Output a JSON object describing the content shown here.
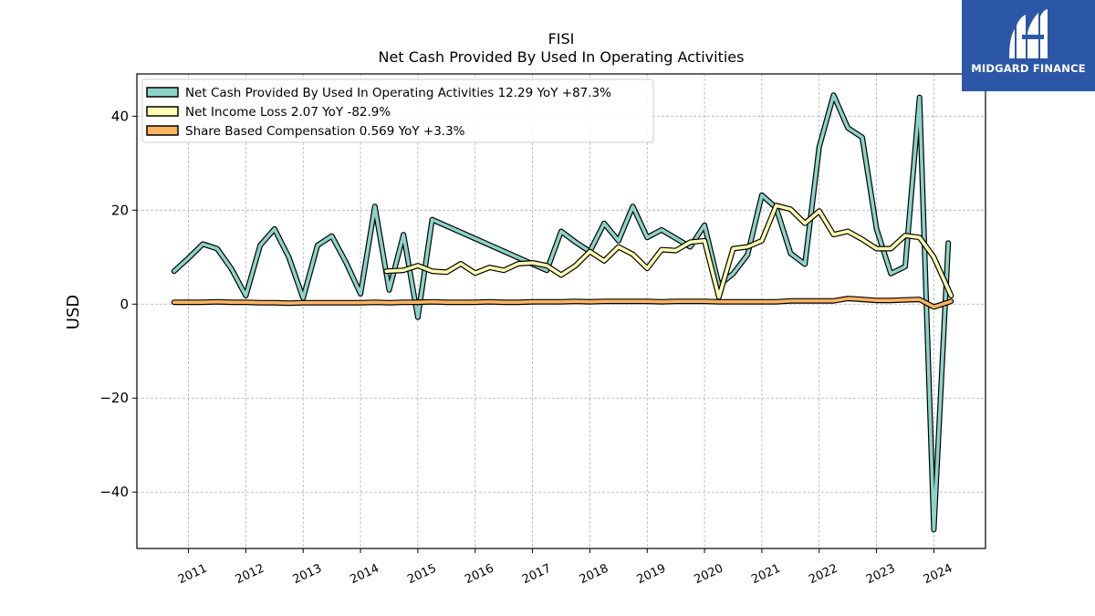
{
  "chart_data": {
    "type": "line",
    "title": "FISI",
    "subtitle": "Net Cash Provided By Used In Operating Activities",
    "ylabel": "USD",
    "xlabel": "",
    "xlim": [
      2010.1,
      2024.9
    ],
    "ylim": [
      -52,
      49
    ],
    "yticks": [
      -40,
      -20,
      0,
      20,
      40
    ],
    "yticklabels": [
      "−40",
      "−20",
      "0",
      "20",
      "40"
    ],
    "xticks": [
      2011,
      2012,
      2013,
      2014,
      2015,
      2016,
      2017,
      2018,
      2019,
      2020,
      2021,
      2022,
      2023,
      2024
    ],
    "xticklabels": [
      "2011",
      "2012",
      "2013",
      "2014",
      "2015",
      "2016",
      "2017",
      "2018",
      "2019",
      "2020",
      "2021",
      "2022",
      "2023",
      "2024"
    ],
    "grid": true,
    "legend_position": "top-left",
    "series": [
      {
        "name": "Net Cash Provided By Used In Operating Activities  12.29 YoY +87.3%",
        "color": "#8dd3c7",
        "x": [
          2010.75,
          2011.0,
          2011.25,
          2011.5,
          2011.75,
          2012.0,
          2012.25,
          2012.5,
          2012.75,
          2013.0,
          2013.25,
          2013.5,
          2013.75,
          2014.0,
          2014.25,
          2014.5,
          2014.75,
          2015.0,
          2015.25,
          2017.25,
          2017.5,
          2017.75,
          2018.0,
          2018.25,
          2018.5,
          2018.75,
          2019.0,
          2019.25,
          2019.5,
          2019.75,
          2020.0,
          2020.25,
          2020.5,
          2020.75,
          2021.0,
          2021.25,
          2021.5,
          2021.75,
          2022.0,
          2022.25,
          2022.5,
          2022.75,
          2023.0,
          2023.25,
          2023.5,
          2023.75,
          2024.0,
          2024.25
        ],
        "y": [
          7,
          9.8,
          12.8,
          11.8,
          7.5,
          1.8,
          12.5,
          16,
          10,
          1.3,
          12.5,
          14.5,
          8.8,
          2.2,
          20.8,
          3,
          14.8,
          -2.8,
          18,
          7.2,
          15.5,
          13.2,
          11.2,
          17.2,
          13.5,
          20.8,
          14.2,
          15.8,
          14,
          12.2,
          16.8,
          4,
          6.5,
          10.5,
          23.2,
          20.5,
          10.8,
          8.5,
          33.5,
          44.5,
          37.5,
          35.5,
          16,
          6.5,
          8,
          44,
          -48,
          13
        ]
      },
      {
        "name": "Net Income Loss  2.07 YoY -82.9%",
        "color": "#ffffb3",
        "x": [
          2014.45,
          2014.75,
          2015.0,
          2015.25,
          2015.5,
          2015.75,
          2016.0,
          2016.25,
          2016.5,
          2016.75,
          2017.0,
          2017.25,
          2017.5,
          2017.75,
          2018.0,
          2018.25,
          2018.5,
          2018.75,
          2019.0,
          2019.25,
          2019.5,
          2019.75,
          2020.0,
          2020.25,
          2020.5,
          2020.75,
          2021.0,
          2021.25,
          2021.5,
          2021.75,
          2022.0,
          2022.25,
          2022.5,
          2022.75,
          2023.0,
          2023.25,
          2023.5,
          2023.75,
          2024.0,
          2024.3
        ],
        "y": [
          7,
          7.2,
          8.2,
          7,
          6.8,
          8.6,
          6.6,
          7.8,
          7.2,
          8.6,
          8.8,
          8.2,
          6.2,
          8.2,
          11.2,
          9.2,
          12.2,
          10.6,
          7.6,
          11.6,
          11.4,
          13.2,
          13.5,
          1.5,
          11.8,
          12.2,
          13.5,
          21,
          20.2,
          17.2,
          19.8,
          14.8,
          15.5,
          13.8,
          11.8,
          11.8,
          14.6,
          14.2,
          10,
          1.8
        ]
      },
      {
        "name": "Share Based Compensation  0.569 YoY +3.3%",
        "color": "#fdb462",
        "x": [
          2010.75,
          2011.0,
          2011.25,
          2011.5,
          2011.75,
          2012.0,
          2012.25,
          2012.5,
          2012.75,
          2013.0,
          2013.25,
          2013.5,
          2013.75,
          2014.0,
          2014.25,
          2014.5,
          2014.75,
          2015.0,
          2015.25,
          2015.5,
          2015.75,
          2016.0,
          2016.25,
          2016.5,
          2016.75,
          2017.0,
          2017.25,
          2017.5,
          2017.75,
          2018.0,
          2018.25,
          2018.5,
          2018.75,
          2019.0,
          2019.25,
          2019.5,
          2019.75,
          2020.0,
          2020.25,
          2020.5,
          2020.75,
          2021.0,
          2021.25,
          2021.5,
          2021.75,
          2022.0,
          2022.25,
          2022.5,
          2022.75,
          2023.0,
          2023.25,
          2023.5,
          2023.75,
          2024.0,
          2024.3
        ],
        "y": [
          0.4,
          0.4,
          0.4,
          0.5,
          0.4,
          0.4,
          0.3,
          0.3,
          0.2,
          0.3,
          0.3,
          0.3,
          0.3,
          0.3,
          0.4,
          0.3,
          0.4,
          0.4,
          0.5,
          0.4,
          0.4,
          0.4,
          0.5,
          0.4,
          0.4,
          0.5,
          0.5,
          0.5,
          0.6,
          0.5,
          0.6,
          0.6,
          0.6,
          0.6,
          0.5,
          0.6,
          0.6,
          0.6,
          0.5,
          0.5,
          0.5,
          0.5,
          0.5,
          0.7,
          0.7,
          0.7,
          0.7,
          1.2,
          1,
          0.8,
          0.8,
          0.9,
          1,
          -0.6,
          0.6
        ]
      }
    ]
  },
  "logo": {
    "text": "MIDGARD FINANCE",
    "background": "#2c57a6"
  }
}
